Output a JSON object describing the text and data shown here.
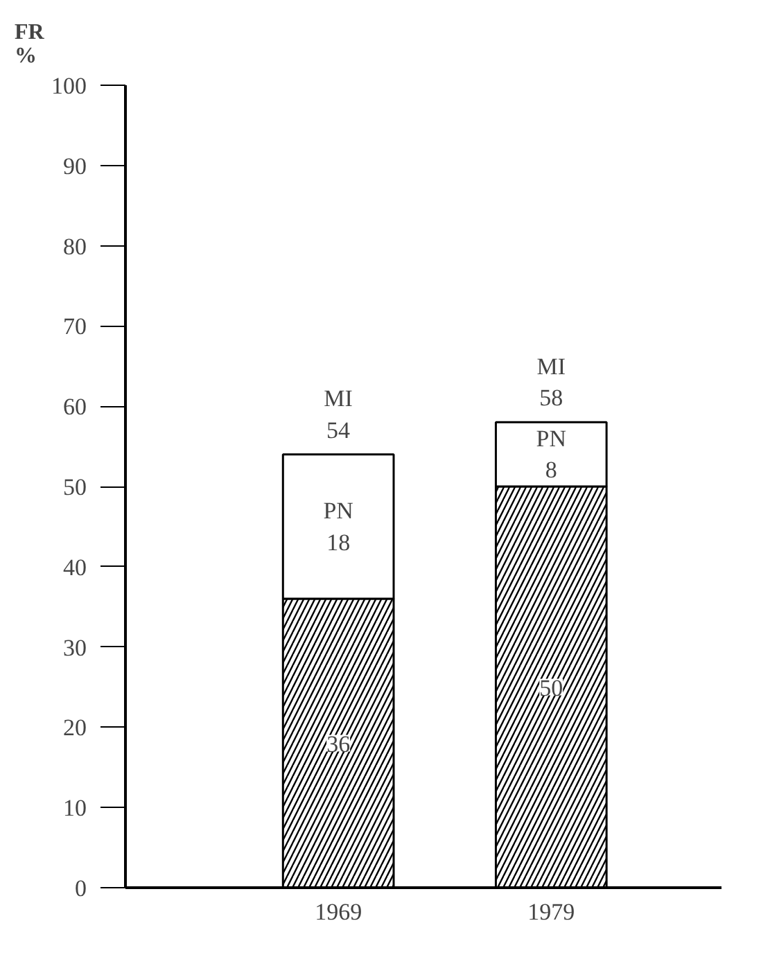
{
  "chart_data": {
    "type": "bar",
    "stacked": true,
    "ylabel": "FR\n%",
    "categories": [
      "1969",
      "1979"
    ],
    "series": [
      {
        "color": "#000000",
        "values": [
          36,
          50
        ],
        "value_labels": [
          "36",
          "50"
        ]
      },
      {
        "color": "#ffffff",
        "values": [
          18,
          8
        ],
        "value_labels": [
          "PN\n18",
          "PN\n8"
        ]
      }
    ],
    "totals": [
      "MI\n54",
      "MI\n58"
    ],
    "ylim": [
      0,
      100
    ],
    "yticks": [
      0,
      10,
      20,
      30,
      40,
      50,
      60,
      70,
      80,
      90,
      100
    ],
    "grid": false
  }
}
